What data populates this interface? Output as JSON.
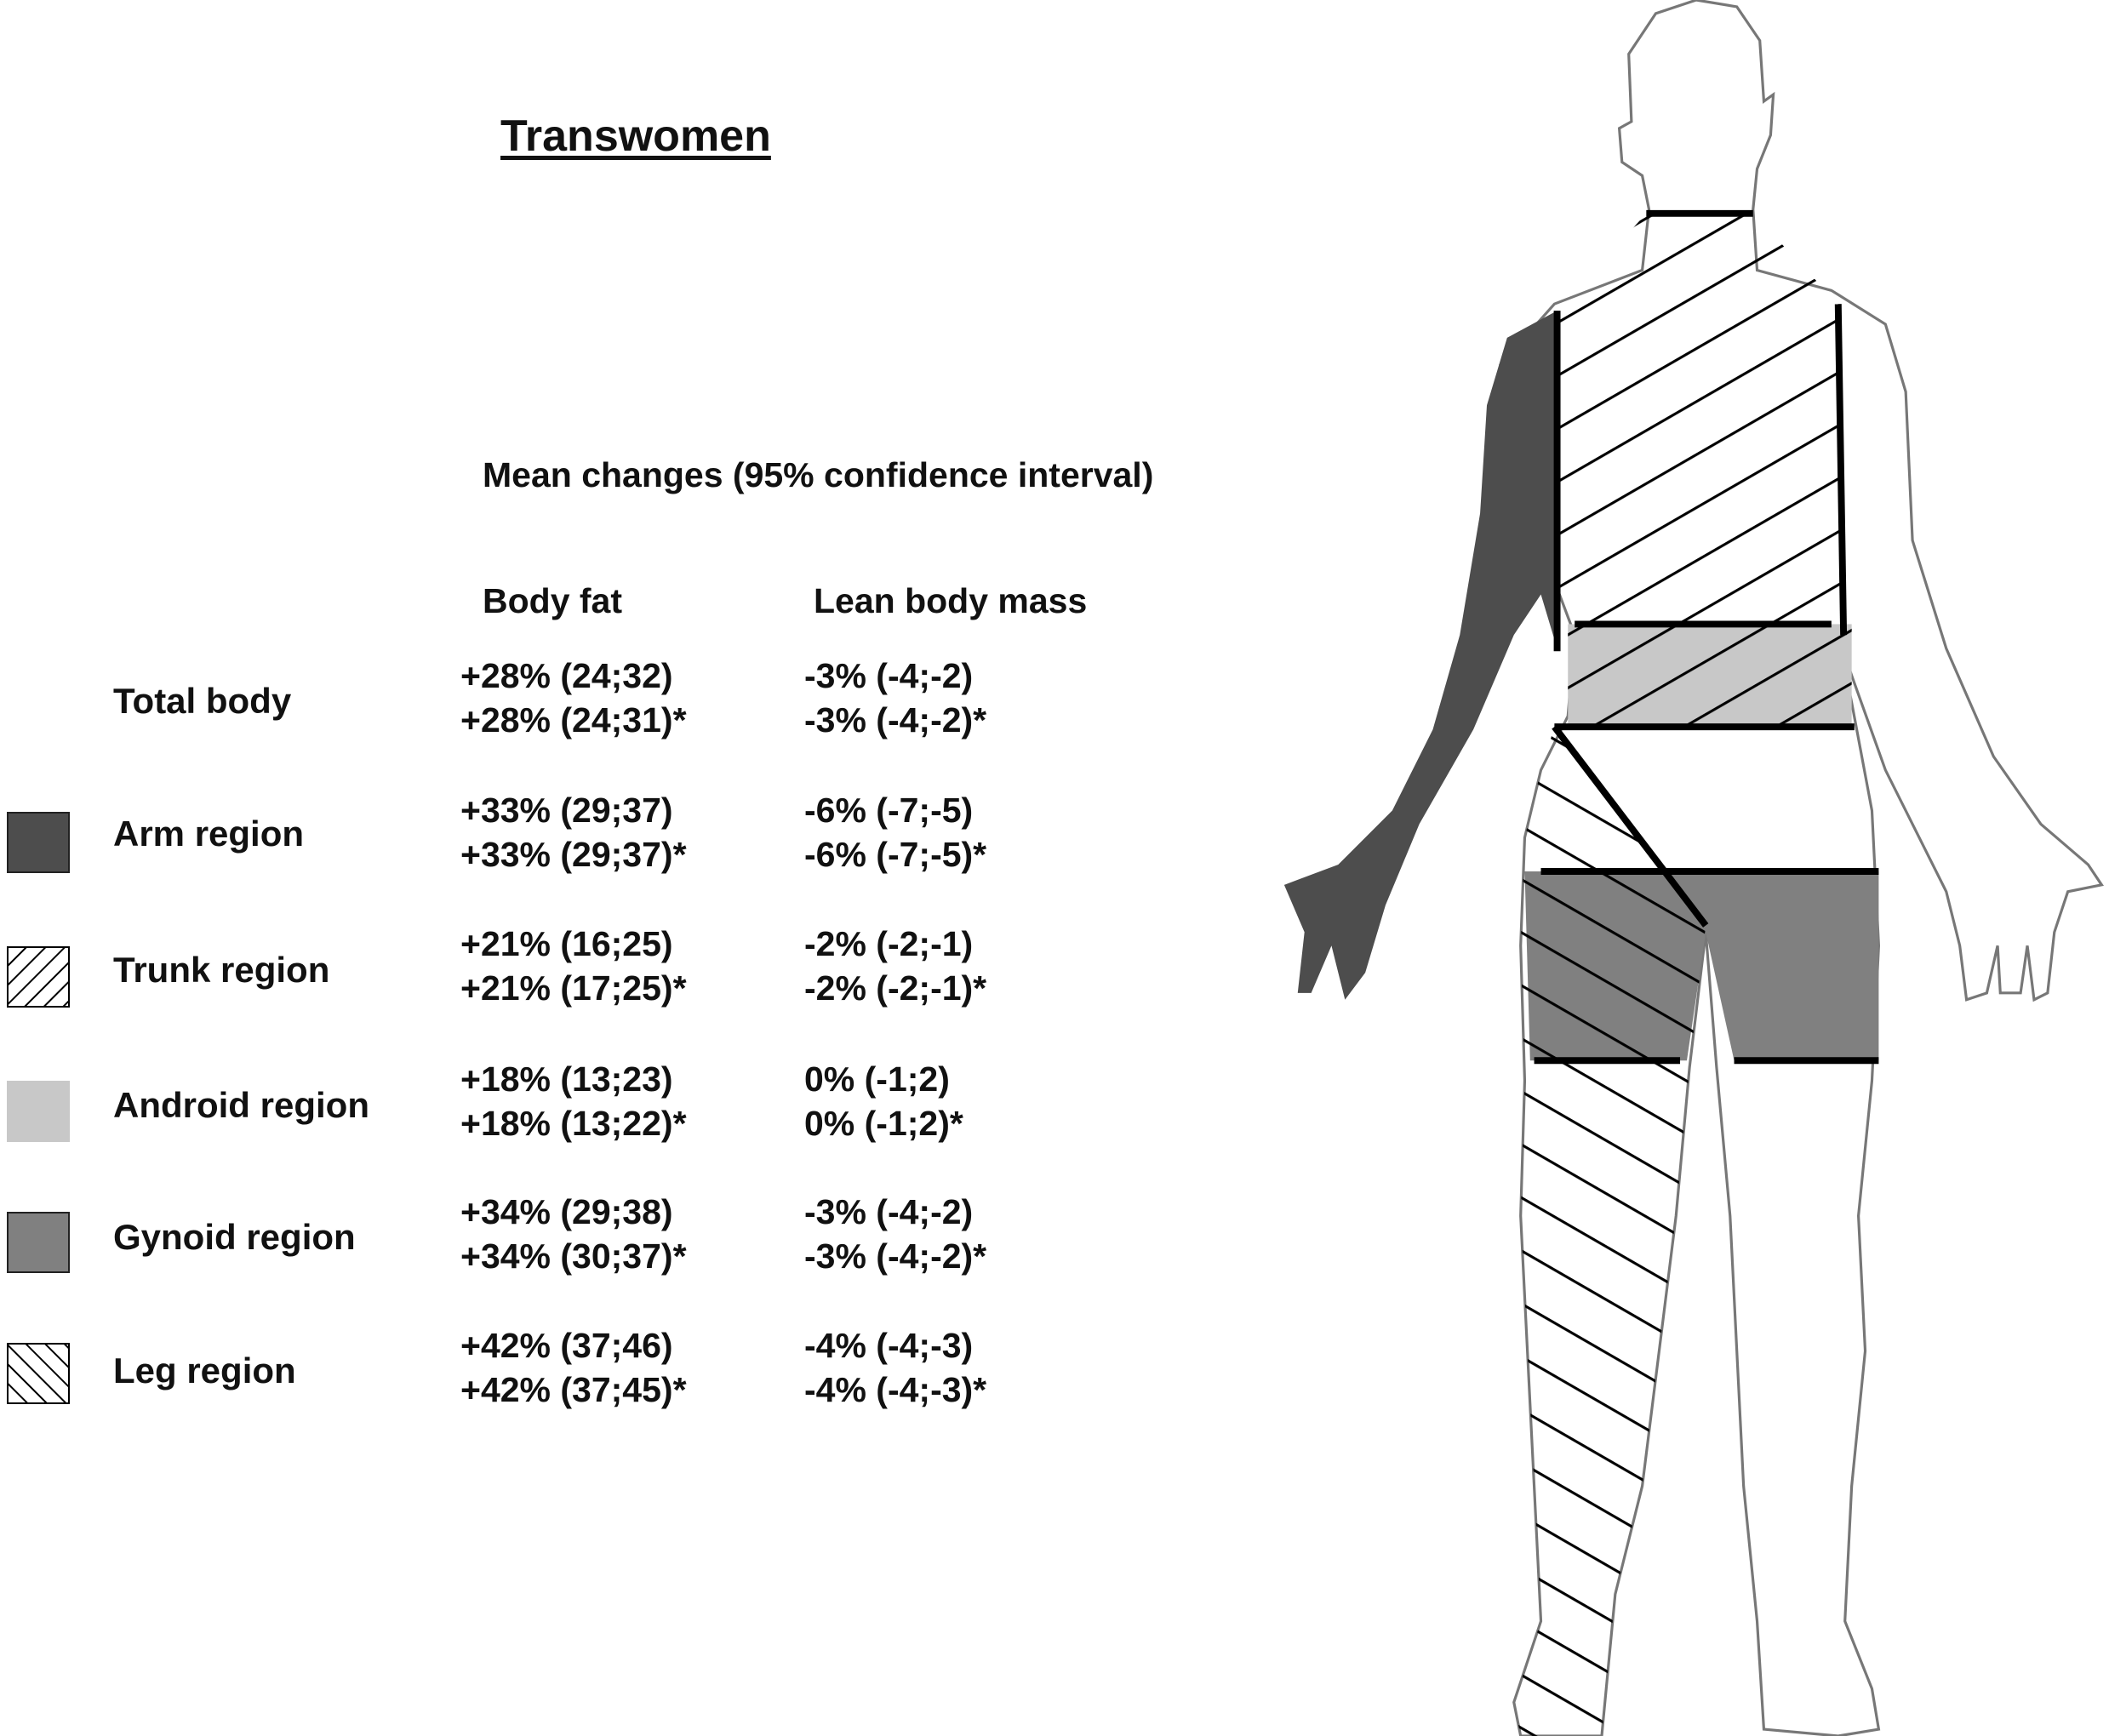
{
  "title": "Transwomen",
  "subtitle": "Mean changes (95% confidence interval)",
  "columns": {
    "body_fat": "Body fat",
    "lean_body_mass": "Lean body mass"
  },
  "rows": [
    {
      "label": "Total body",
      "swatch": "none",
      "body_fat": [
        "+28% (24;32)",
        "+28% (24;31)*"
      ],
      "lean_body_mass": [
        "-3% (-4;-2)",
        "-3% (-4;-2)*"
      ]
    },
    {
      "label": "Arm region",
      "swatch": "dark-gray-fill",
      "color": "#4d4d4d",
      "body_fat": [
        "+33% (29;37)",
        "+33% (29;37)*"
      ],
      "lean_body_mass": [
        "-6% (-7;-5)",
        "-6% (-7;-5)*"
      ]
    },
    {
      "label": "Trunk region",
      "swatch": "forward-hatch",
      "body_fat": [
        "+21% (16;25)",
        "+21% (17;25)*"
      ],
      "lean_body_mass": [
        "-2% (-2;-1)",
        "-2% (-2;-1)*"
      ]
    },
    {
      "label": "Android region",
      "swatch": "light-gray-fill",
      "color": "#c8c8c8",
      "body_fat": [
        "+18% (13;23)",
        "+18% (13;22)*"
      ],
      "lean_body_mass": [
        "0% (-1;2)",
        "0% (-1;2)*"
      ]
    },
    {
      "label": "Gynoid region",
      "swatch": "mid-gray-fill",
      "color": "#808080",
      "body_fat": [
        "+34% (29;38)",
        "+34% (30;37)*"
      ],
      "lean_body_mass": [
        "-3% (-4;-2)",
        "-3% (-4;-2)*"
      ]
    },
    {
      "label": "Leg region",
      "swatch": "back-hatch",
      "body_fat": [
        "+42% (37;46)",
        "+42% (37;45)*"
      ],
      "lean_body_mass": [
        "-4% (-4;-3)",
        "-4% (-4;-3)*"
      ]
    }
  ]
}
